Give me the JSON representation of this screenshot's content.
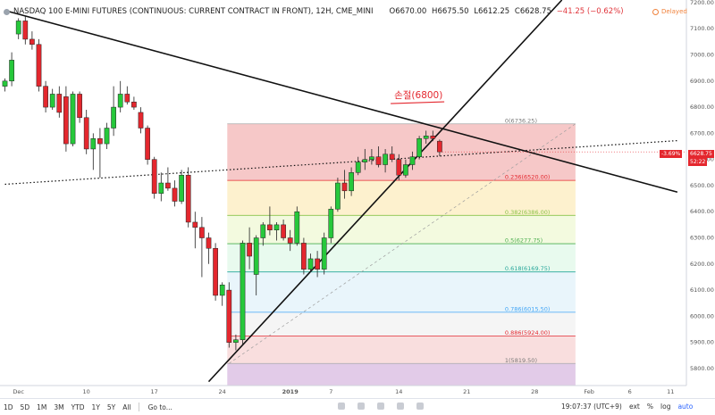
{
  "header": {
    "title": "NASDAQ 100 E-MINI FUTURES (CONTINUOUS: CURRENT CONTRACT IN FRONT), 12H, CME_MINI",
    "open": "O6670.00",
    "high": "H6675.50",
    "low": "L6612.25",
    "close": "C6628.75",
    "change": "−41.25 (−0.62%)",
    "delayed": "Delayed"
  },
  "annotation": {
    "stop_loss_label": "손절(6800)"
  },
  "price_badges": {
    "change": "-3.69%",
    "last": "6628.75",
    "countdown": "52:22"
  },
  "toolbar": {
    "ranges": [
      "1D",
      "5D",
      "1M",
      "3M",
      "YTD",
      "1Y",
      "5Y",
      "All"
    ],
    "goto": "Go to...",
    "time": "19:07:37 (UTC+9)",
    "ext": "ext",
    "percent": "%",
    "log": "log",
    "auto": "auto"
  },
  "colors": {
    "up": "#26c83b",
    "down": "#e4272e",
    "stop_loss": "#e4272e",
    "fib_0": "#ef9a9a",
    "fib_236": "#fbe6a6",
    "fib_382": "#e9f5c4",
    "fib_5": "#d6f5e0",
    "fib_618": "#d7ecf8",
    "fib_786": "#ececec",
    "fib_886": "#f4c3c3",
    "fib_1": "#cfa9d8"
  },
  "chart_data": {
    "type": "candlestick",
    "title": "NASDAQ 100 E-MINI FUTURES (CONTINUOUS: CURRENT CONTRACT IN FRONT), 12H, CME_MINI",
    "ylim": [
      5735,
      7210
    ],
    "y_ticks": [
      5800,
      5900,
      6000,
      6100,
      6200,
      6300,
      6400,
      6500,
      6600,
      6700,
      6800,
      6900,
      7000,
      7100,
      7200
    ],
    "x_ticks": [
      {
        "label": "Dec",
        "bar": 2
      },
      {
        "label": "10",
        "bar": 12
      },
      {
        "label": "17",
        "bar": 22
      },
      {
        "label": "24",
        "bar": 32
      },
      {
        "label": "2019",
        "bar": 42
      },
      {
        "label": "7",
        "bar": 48
      },
      {
        "label": "14",
        "bar": 58
      },
      {
        "label": "21",
        "bar": 68
      },
      {
        "label": "28",
        "bar": 78
      },
      {
        "label": "Feb",
        "bar": 86
      },
      {
        "label": "6",
        "bar": 92
      },
      {
        "label": "11",
        "bar": 98
      }
    ],
    "candles": [
      {
        "o": 6880,
        "h": 6910,
        "l": 6860,
        "c": 6900
      },
      {
        "o": 6900,
        "h": 7010,
        "l": 6880,
        "c": 6980
      },
      {
        "o": 7080,
        "h": 7140,
        "l": 7060,
        "c": 7130
      },
      {
        "o": 7130,
        "h": 7150,
        "l": 7040,
        "c": 7060
      },
      {
        "o": 7060,
        "h": 7090,
        "l": 7020,
        "c": 7040
      },
      {
        "o": 7040,
        "h": 7060,
        "l": 6860,
        "c": 6880
      },
      {
        "o": 6880,
        "h": 6900,
        "l": 6780,
        "c": 6800
      },
      {
        "o": 6800,
        "h": 6870,
        "l": 6790,
        "c": 6850
      },
      {
        "o": 6850,
        "h": 6880,
        "l": 6760,
        "c": 6780
      },
      {
        "o": 6840,
        "h": 6880,
        "l": 6630,
        "c": 6660
      },
      {
        "o": 6660,
        "h": 6860,
        "l": 6650,
        "c": 6850
      },
      {
        "o": 6850,
        "h": 6860,
        "l": 6740,
        "c": 6760
      },
      {
        "o": 6760,
        "h": 6790,
        "l": 6620,
        "c": 6640
      },
      {
        "o": 6640,
        "h": 6700,
        "l": 6560,
        "c": 6680
      },
      {
        "o": 6680,
        "h": 6720,
        "l": 6530,
        "c": 6660
      },
      {
        "o": 6660,
        "h": 6740,
        "l": 6640,
        "c": 6720
      },
      {
        "o": 6720,
        "h": 6880,
        "l": 6690,
        "c": 6800
      },
      {
        "o": 6800,
        "h": 6900,
        "l": 6780,
        "c": 6850
      },
      {
        "o": 6850,
        "h": 6880,
        "l": 6810,
        "c": 6820
      },
      {
        "o": 6820,
        "h": 6840,
        "l": 6790,
        "c": 6800
      },
      {
        "o": 6780,
        "h": 6800,
        "l": 6700,
        "c": 6720
      },
      {
        "o": 6720,
        "h": 6730,
        "l": 6580,
        "c": 6600
      },
      {
        "o": 6600,
        "h": 6610,
        "l": 6450,
        "c": 6470
      },
      {
        "o": 6470,
        "h": 6550,
        "l": 6440,
        "c": 6510
      },
      {
        "o": 6510,
        "h": 6570,
        "l": 6480,
        "c": 6490
      },
      {
        "o": 6490,
        "h": 6520,
        "l": 6420,
        "c": 6440
      },
      {
        "o": 6440,
        "h": 6560,
        "l": 6430,
        "c": 6540
      },
      {
        "o": 6540,
        "h": 6570,
        "l": 6340,
        "c": 6360
      },
      {
        "o": 6360,
        "h": 6400,
        "l": 6260,
        "c": 6340
      },
      {
        "o": 6340,
        "h": 6380,
        "l": 6150,
        "c": 6300
      },
      {
        "o": 6300,
        "h": 6320,
        "l": 6200,
        "c": 6260
      },
      {
        "o": 6260,
        "h": 6280,
        "l": 6060,
        "c": 6080
      },
      {
        "o": 6080,
        "h": 6130,
        "l": 6040,
        "c": 6120
      },
      {
        "o": 6100,
        "h": 6130,
        "l": 5880,
        "c": 5900
      },
      {
        "o": 5900,
        "h": 5930,
        "l": 5870,
        "c": 5910
      },
      {
        "o": 5910,
        "h": 6290,
        "l": 5890,
        "c": 6280
      },
      {
        "o": 6280,
        "h": 6340,
        "l": 6180,
        "c": 6230
      },
      {
        "o": 6160,
        "h": 6310,
        "l": 6080,
        "c": 6300
      },
      {
        "o": 6300,
        "h": 6360,
        "l": 6270,
        "c": 6350
      },
      {
        "o": 6350,
        "h": 6420,
        "l": 6310,
        "c": 6330
      },
      {
        "o": 6330,
        "h": 6360,
        "l": 6290,
        "c": 6350
      },
      {
        "o": 6350,
        "h": 6370,
        "l": 6290,
        "c": 6300
      },
      {
        "o": 6300,
        "h": 6330,
        "l": 6250,
        "c": 6280
      },
      {
        "o": 6280,
        "h": 6420,
        "l": 6270,
        "c": 6400
      },
      {
        "o": 6280,
        "h": 6300,
        "l": 6160,
        "c": 6180
      },
      {
        "o": 6180,
        "h": 6240,
        "l": 6170,
        "c": 6220
      },
      {
        "o": 6220,
        "h": 6250,
        "l": 6150,
        "c": 6180
      },
      {
        "o": 6180,
        "h": 6320,
        "l": 6160,
        "c": 6300
      },
      {
        "o": 6300,
        "h": 6420,
        "l": 6280,
        "c": 6410
      },
      {
        "o": 6410,
        "h": 6530,
        "l": 6400,
        "c": 6510
      },
      {
        "o": 6510,
        "h": 6560,
        "l": 6450,
        "c": 6480
      },
      {
        "o": 6480,
        "h": 6570,
        "l": 6460,
        "c": 6550
      },
      {
        "o": 6550,
        "h": 6610,
        "l": 6540,
        "c": 6590
      },
      {
        "o": 6590,
        "h": 6640,
        "l": 6560,
        "c": 6600
      },
      {
        "o": 6600,
        "h": 6640,
        "l": 6580,
        "c": 6610
      },
      {
        "o": 6610,
        "h": 6650,
        "l": 6570,
        "c": 6580
      },
      {
        "o": 6580,
        "h": 6640,
        "l": 6550,
        "c": 6620
      },
      {
        "o": 6620,
        "h": 6650,
        "l": 6590,
        "c": 6600
      },
      {
        "o": 6600,
        "h": 6620,
        "l": 6520,
        "c": 6540
      },
      {
        "o": 6540,
        "h": 6600,
        "l": 6530,
        "c": 6580
      },
      {
        "o": 6580,
        "h": 6630,
        "l": 6560,
        "c": 6610
      },
      {
        "o": 6610,
        "h": 6690,
        "l": 6600,
        "c": 6680
      },
      {
        "o": 6680,
        "h": 6710,
        "l": 6660,
        "c": 6690
      },
      {
        "o": 6690,
        "h": 6710,
        "l": 6670,
        "c": 6680
      },
      {
        "o": 6670,
        "h": 6676,
        "l": 6612,
        "c": 6629
      }
    ],
    "fib_levels": [
      {
        "ratio": 0,
        "price": 6736.25,
        "label": "0(6736.25)"
      },
      {
        "ratio": 0.236,
        "price": 6520.0,
        "label": "0.236(6520.00)"
      },
      {
        "ratio": 0.382,
        "price": 6386.0,
        "label": "0.382(6386.00)"
      },
      {
        "ratio": 0.5,
        "price": 6277.75,
        "label": "0.5(6277.75)"
      },
      {
        "ratio": 0.618,
        "price": 6169.75,
        "label": "0.618(6169.75)"
      },
      {
        "ratio": 0.786,
        "price": 6015.5,
        "label": "0.786(6015.50)"
      },
      {
        "ratio": 0.886,
        "price": 5924.0,
        "label": "0.886(5924.00)"
      },
      {
        "ratio": 1,
        "price": 5819.5,
        "label": "1(5819.50)"
      }
    ],
    "fib_start_bar": 33,
    "fib_end_bar": 84,
    "trendlines": [
      {
        "name": "downtrend",
        "from": {
          "bar": 0,
          "price": 7170
        },
        "to": {
          "bar": 99,
          "price": 6475
        },
        "style": "solid"
      },
      {
        "name": "uptrend",
        "from": {
          "bar": 30,
          "price": 5750
        },
        "to": {
          "bar": 82,
          "price": 7210
        },
        "style": "solid"
      },
      {
        "name": "horizontal-trend",
        "from": {
          "bar": 0,
          "price": 6505
        },
        "to": {
          "bar": 99,
          "price": 6672
        },
        "style": "dotted"
      }
    ],
    "stop_loss": {
      "price": 6800,
      "bar": 61
    }
  }
}
